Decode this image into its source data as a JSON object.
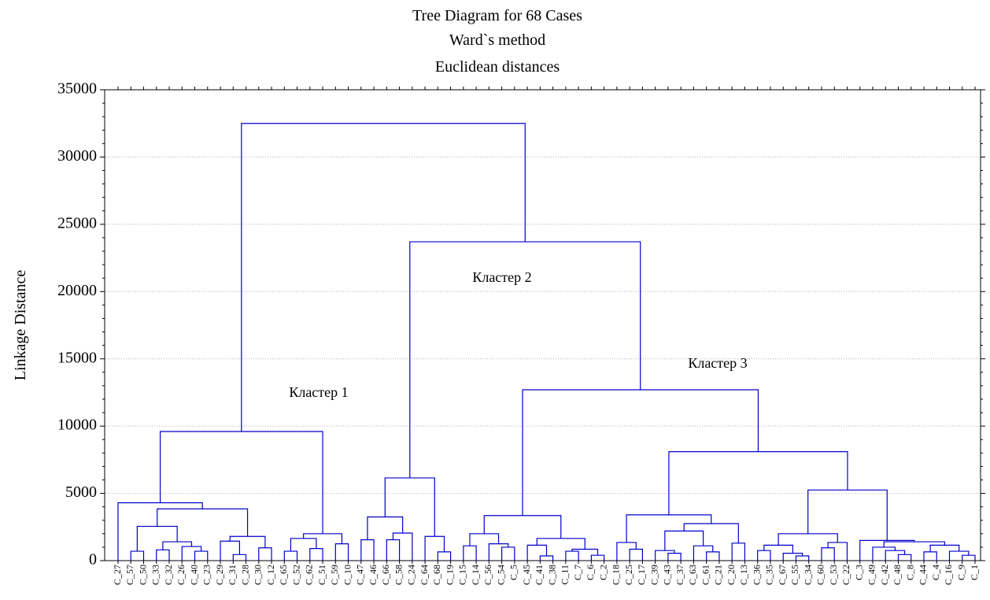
{
  "chart_data": {
    "type": "dendrogram",
    "title": "Tree Diagram for 68 Cases",
    "subtitle": [
      "Ward`s method",
      "Euclidean distances"
    ],
    "y_label": "Linkage Distance",
    "ylim": [
      0,
      35000
    ],
    "yticks": [
      0,
      5000,
      10000,
      15000,
      20000,
      25000,
      30000,
      35000
    ],
    "grid": true,
    "color": "#0000cc",
    "annotations": [
      "Кластер 1",
      "Кластер 2",
      "Кластер 3"
    ],
    "tree": {
      "height": 32500,
      "children": [
        {
          "height": 9600,
          "children": [
            {
              "height": 4300,
              "children": [
                "C_27",
                {
                  "height": 3850,
                  "children": [
                    {
                      "height": 2550,
                      "children": [
                        {
                          "height": 700,
                          "children": [
                            "C_57",
                            "C_50"
                          ]
                        },
                        {
                          "height": 1400,
                          "children": [
                            {
                              "height": 800,
                              "children": [
                                "C_33",
                                "C_32"
                              ]
                            },
                            {
                              "height": 1050,
                              "children": [
                                "C_26",
                                {
                                  "height": 700,
                                  "children": [
                                    "C_40",
                                    "C_23"
                                  ]
                                }
                              ]
                            }
                          ]
                        }
                      ]
                    },
                    {
                      "height": 1800,
                      "children": [
                        {
                          "height": 1450,
                          "children": [
                            "C_29",
                            {
                              "height": 450,
                              "children": [
                                "C_31",
                                "C_28"
                              ]
                            }
                          ]
                        },
                        {
                          "height": 950,
                          "children": [
                            "C_30",
                            "C_12"
                          ]
                        }
                      ]
                    }
                  ]
                }
              ]
            },
            {
              "height": 2000,
              "children": [
                {
                  "height": 1650,
                  "children": [
                    {
                      "height": 700,
                      "children": [
                        "C_65",
                        "C_52"
                      ]
                    },
                    {
                      "height": 900,
                      "children": [
                        "C_62",
                        "C_51"
                      ]
                    }
                  ]
                },
                {
                  "height": 1250,
                  "children": [
                    "C_59",
                    "C_10"
                  ]
                }
              ]
            }
          ]
        },
        {
          "height": 23700,
          "children": [
            {
              "height": 6150,
              "children": [
                {
                  "height": 3250,
                  "children": [
                    {
                      "height": 1550,
                      "children": [
                        "C_47",
                        "C_46"
                      ]
                    },
                    {
                      "height": 2050,
                      "children": [
                        {
                          "height": 1550,
                          "children": [
                            "C_66",
                            "C_58"
                          ]
                        },
                        "C_24"
                      ]
                    }
                  ]
                },
                {
                  "height": 1800,
                  "children": [
                    "C_64",
                    {
                      "height": 650,
                      "children": [
                        "C_68",
                        "C_19"
                      ]
                    }
                  ]
                }
              ]
            },
            {
              "height": 12700,
              "children": [
                {
                  "height": 3350,
                  "children": [
                    {
                      "height": 2000,
                      "children": [
                        {
                          "height": 1100,
                          "children": [
                            "C_15",
                            "C_14"
                          ]
                        },
                        {
                          "height": 1250,
                          "children": [
                            "C_56",
                            {
                              "height": 1000,
                              "children": [
                                "C_54",
                                "C_5"
                              ]
                            }
                          ]
                        }
                      ]
                    },
                    {
                      "height": 1650,
                      "children": [
                        {
                          "height": 1150,
                          "children": [
                            "C_45",
                            {
                              "height": 350,
                              "children": [
                                "C_41",
                                "C_38"
                              ]
                            }
                          ]
                        },
                        {
                          "height": 850,
                          "children": [
                            {
                              "height": 700,
                              "children": [
                                "C_11",
                                "C_7"
                              ]
                            },
                            {
                              "height": 400,
                              "children": [
                                "C_6",
                                "C_2"
                              ]
                            }
                          ]
                        }
                      ]
                    }
                  ]
                },
                {
                  "height": 8100,
                  "children": [
                    {
                      "height": 3400,
                      "children": [
                        {
                          "height": 1350,
                          "children": [
                            "C_18",
                            {
                              "height": 850,
                              "children": [
                                "C_25",
                                "C_17"
                              ]
                            }
                          ]
                        },
                        {
                          "height": 2750,
                          "children": [
                            {
                              "height": 2200,
                              "children": [
                                {
                                  "height": 750,
                                  "children": [
                                    "C_39",
                                    {
                                      "height": 550,
                                      "children": [
                                        "C_43",
                                        "C_37"
                                      ]
                                    }
                                  ]
                                },
                                {
                                  "height": 1100,
                                  "children": [
                                    "C_63",
                                    {
                                      "height": 650,
                                      "children": [
                                        "C_61",
                                        "C_21"
                                      ]
                                    }
                                  ]
                                }
                              ]
                            },
                            {
                              "height": 1300,
                              "children": [
                                "C_20",
                                "C_13"
                              ]
                            }
                          ]
                        }
                      ]
                    },
                    {
                      "height": 5250,
                      "children": [
                        {
                          "height": 2000,
                          "children": [
                            {
                              "height": 1150,
                              "children": [
                                {
                                  "height": 750,
                                  "children": [
                                    "C_36",
                                    "C_35"
                                  ]
                                },
                                {
                                  "height": 550,
                                  "children": [
                                    "C_67",
                                    {
                                      "height": 350,
                                      "children": [
                                        "C_55",
                                        "C_34"
                                      ]
                                    }
                                  ]
                                }
                              ]
                            },
                            {
                              "height": 1350,
                              "children": [
                                {
                                  "height": 950,
                                  "children": [
                                    "C_60",
                                    "C_53"
                                  ]
                                },
                                "C_22"
                              ]
                            }
                          ]
                        },
                        {
                          "height": 1500,
                          "children": [
                            "C_3",
                            {
                              "height": 1400,
                              "children": [
                                {
                                  "height": 1000,
                                  "children": [
                                    "C_49",
                                    {
                                      "height": 750,
                                      "children": [
                                        "C_42",
                                        {
                                          "height": 450,
                                          "children": [
                                            "C_48",
                                            "C_8"
                                          ]
                                        }
                                      ]
                                    }
                                  ]
                                },
                                {
                                  "height": 1150,
                                  "children": [
                                    {
                                      "height": 650,
                                      "children": [
                                        "C_44",
                                        "C_4"
                                      ]
                                    },
                                    {
                                      "height": 700,
                                      "children": [
                                        "C_16",
                                        {
                                          "height": 400,
                                          "children": [
                                            "C_9",
                                            "C_1"
                                          ]
                                        }
                                      ]
                                    }
                                  ]
                                }
                              ]
                            }
                          ]
                        }
                      ]
                    }
                  ]
                }
              ]
            }
          ]
        }
      ]
    }
  }
}
